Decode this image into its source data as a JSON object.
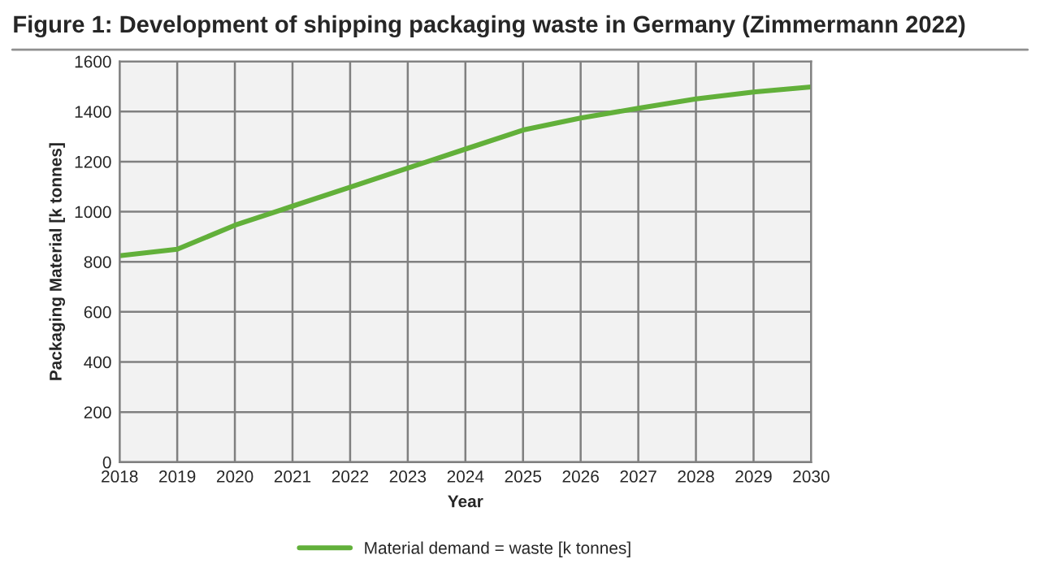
{
  "chart_data": {
    "type": "line",
    "title": "Figure 1: Development of shipping packaging waste in Germany (Zimmermann 2022)",
    "xlabel": "Year",
    "ylabel": "Packaging Material [k tonnes]",
    "x": [
      2018,
      2019,
      2020,
      2021,
      2022,
      2023,
      2024,
      2025,
      2026,
      2027,
      2028,
      2029,
      2030
    ],
    "series": [
      {
        "name": "Material demand = waste [k tonnes]",
        "color": "#62b03a",
        "values": [
          824,
          850,
          946,
          1022,
          1098,
          1174,
          1250,
          1326,
          1374,
          1413,
          1450,
          1478,
          1498
        ]
      }
    ],
    "xlim": [
      2018,
      2030
    ],
    "xticks": [
      2018,
      2019,
      2020,
      2021,
      2022,
      2023,
      2024,
      2025,
      2026,
      2027,
      2028,
      2029,
      2030
    ],
    "ylim": [
      0,
      1600
    ],
    "yticks": [
      0,
      200,
      400,
      600,
      800,
      1000,
      1200,
      1400,
      1600
    ],
    "grid": true,
    "legend": "bottom",
    "marker": "none",
    "line_style": "solid"
  }
}
